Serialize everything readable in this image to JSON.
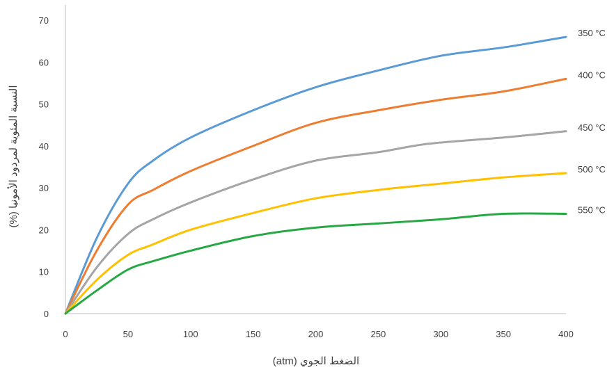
{
  "chart_data": {
    "type": "line",
    "title": "",
    "xlabel": "الضغط الجوي (atm)",
    "ylabel": "النسبة المئوية لمردود الأمونيا (%)",
    "xlim": [
      0,
      400
    ],
    "ylim": [
      0,
      70
    ],
    "xticks": [
      0,
      50,
      100,
      150,
      200,
      250,
      300,
      350,
      400
    ],
    "yticks": [
      0,
      10,
      20,
      30,
      40,
      50,
      60,
      70
    ],
    "grid": false,
    "legend": "none (series labelled at right end of lines)",
    "series": [
      {
        "name": "350 °C",
        "color": "#5b9bd5",
        "x": [
          0,
          25,
          50,
          70,
          100,
          150,
          200,
          250,
          300,
          350,
          400
        ],
        "y": [
          0,
          18,
          31,
          36.5,
          42,
          48.5,
          54,
          58,
          61.5,
          63.5,
          66
        ]
      },
      {
        "name": "400 °C",
        "color": "#ed7d31",
        "x": [
          0,
          25,
          50,
          70,
          100,
          150,
          200,
          250,
          300,
          350,
          400
        ],
        "y": [
          0,
          15,
          26,
          29.5,
          34,
          40,
          45.5,
          48.5,
          51,
          53,
          56
        ]
      },
      {
        "name": "450 °C",
        "color": "#a5a5a5",
        "x": [
          0,
          25,
          50,
          70,
          100,
          150,
          200,
          250,
          290,
          350,
          400
        ],
        "y": [
          0,
          11,
          19,
          22.5,
          26.5,
          32,
          36.5,
          38.5,
          40.5,
          42,
          43.5
        ]
      },
      {
        "name": "500 °C",
        "color": "#ffc000",
        "x": [
          0,
          25,
          50,
          70,
          100,
          150,
          200,
          250,
          300,
          350,
          400
        ],
        "y": [
          0,
          8,
          14,
          16.5,
          20,
          24,
          27.5,
          29.5,
          31,
          32.5,
          33.5
        ]
      },
      {
        "name": "550 °C",
        "color": "#27a844",
        "x": [
          0,
          25,
          50,
          70,
          100,
          150,
          200,
          250,
          300,
          350,
          400
        ],
        "y": [
          0,
          5.5,
          10.5,
          12.5,
          15,
          18.5,
          20.5,
          21.5,
          22.5,
          23.8,
          23.8
        ]
      }
    ]
  }
}
